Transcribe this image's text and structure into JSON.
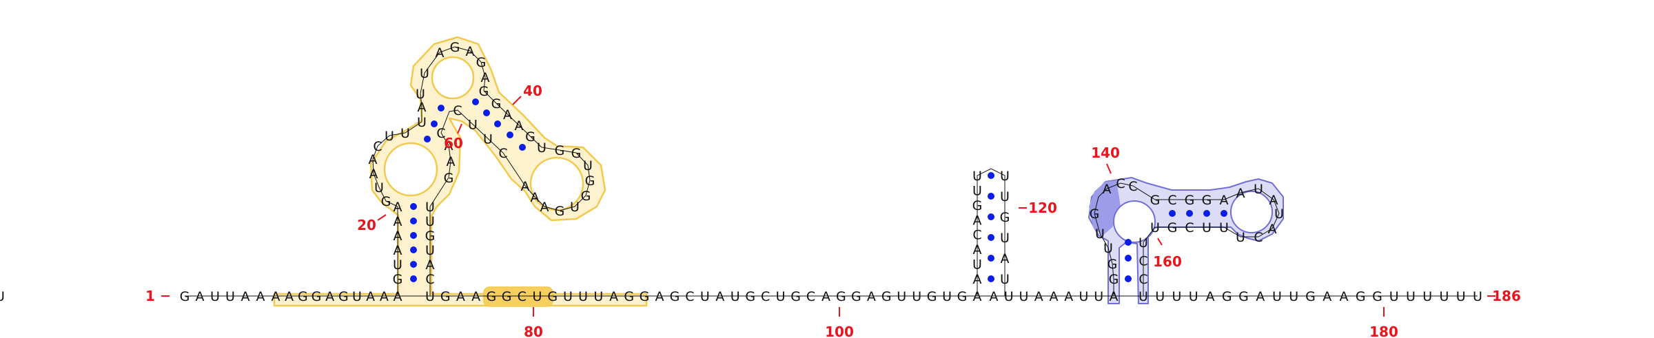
{
  "colors": {
    "base": "#111111",
    "bond": "#0a1ee6",
    "label": "#e8141e",
    "yellow_fill": "#fff3cf",
    "yellow_stroke": "#f2c94c",
    "yellow_strong": "#f7cf5f",
    "blue_fill": "#dcdcf7",
    "blue_stroke": "#6f6fd6",
    "blue_strong": "#9c9ce8"
  },
  "structure": {
    "left_index_label": "1",
    "right_index_label": "186",
    "position_labels": [
      {
        "label": "20"
      },
      {
        "label": "40"
      },
      {
        "label": "60"
      },
      {
        "label": "80"
      },
      {
        "label": "100"
      },
      {
        "label": "120"
      },
      {
        "label": "140"
      },
      {
        "label": "160"
      },
      {
        "label": "180"
      }
    ],
    "baseline": [
      "G",
      "A",
      "U",
      "U",
      "A",
      "A",
      "A",
      "A",
      "G",
      "G",
      "A",
      "G",
      "U",
      "A",
      "A",
      "A",
      "U",
      "G",
      "A",
      "A",
      "G",
      "G",
      "C",
      "U",
      "G",
      "U",
      "U",
      "U",
      "A",
      "G",
      "G",
      "A",
      "G",
      "C",
      "U",
      "A",
      "U",
      "G",
      "C",
      "U",
      "G",
      "C",
      "A",
      "G",
      "G",
      "A",
      "G",
      "U",
      "U",
      "G",
      "U",
      "G",
      "A",
      "A",
      "U",
      "U",
      "A",
      "A",
      "A",
      "U",
      "U",
      "A",
      "U",
      "U",
      "U",
      "U",
      "A",
      "G",
      "G",
      "A",
      "U",
      "U",
      "G",
      "A",
      "A",
      "G",
      "G",
      "U",
      "U",
      "U",
      "U",
      "U",
      "U",
      "U"
    ],
    "stem1_left": [
      "G",
      "U",
      "A",
      "A",
      "A",
      "A"
    ],
    "stem1_right": [
      "C",
      "A",
      "U",
      "G",
      "U",
      "U"
    ],
    "loop1_left": [
      "G",
      "U",
      "A",
      "A",
      "C",
      "U",
      "U"
    ],
    "loop1_right": [
      "G",
      "A",
      "A",
      "C"
    ],
    "stem2_top": [
      "U",
      "A",
      "U"
    ],
    "loop_top": [
      "U",
      "A",
      "G",
      "A",
      "G",
      "A",
      "G"
    ],
    "stem3_right": [
      "G",
      "A",
      "A",
      "G",
      "U"
    ],
    "stem3_left": [
      "C",
      "U",
      "U",
      "C"
    ],
    "loop3": [
      "G",
      "G",
      "U",
      "G",
      "G",
      "U",
      "G",
      "A",
      "A",
      "A"
    ],
    "hairpin2_left": [
      "A",
      "U",
      "A",
      "C",
      "A",
      "G",
      "U",
      "U"
    ],
    "hairpin2_right": [
      "U",
      "A",
      "U",
      "G",
      "U",
      "U"
    ],
    "pk_left_col": [
      "G",
      "G",
      "U",
      "U",
      "G"
    ],
    "pk_right_col": [
      "C",
      "C",
      "U"
    ],
    "pk_top": [
      "A",
      "C",
      "C"
    ],
    "pk_stem_top": [
      "G",
      "C",
      "G",
      "G",
      "A"
    ],
    "pk_stem_bottom": [
      "U",
      "G",
      "C",
      "U",
      "U"
    ],
    "pk_loop": [
      "A",
      "U",
      "A",
      "U",
      "A",
      "C",
      "U"
    ]
  }
}
